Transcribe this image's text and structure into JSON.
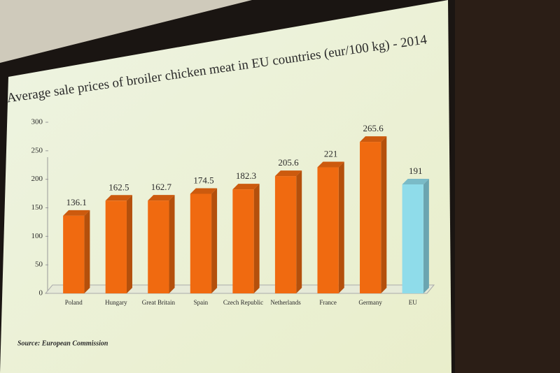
{
  "chart_data": {
    "type": "bar",
    "title": "Average sale prices of broiler chicken meat in EU countries (eur/100 kg) - 2014",
    "categories": [
      "Poland",
      "Hungary",
      "Great Britain",
      "Spain",
      "Czech Republic",
      "Netherlands",
      "France",
      "Germany",
      "EU"
    ],
    "values": [
      136.1,
      162.5,
      162.7,
      174.5,
      182.3,
      205.6,
      221,
      265.6,
      191
    ],
    "colors": [
      "#f06a10",
      "#f06a10",
      "#f06a10",
      "#f06a10",
      "#f06a10",
      "#f06a10",
      "#f06a10",
      "#f06a10",
      "#8fdcea"
    ],
    "ylim": [
      0,
      300
    ],
    "yticks": [
      0,
      50,
      100,
      150,
      200,
      250,
      300
    ],
    "source": "Source: European Commission"
  }
}
